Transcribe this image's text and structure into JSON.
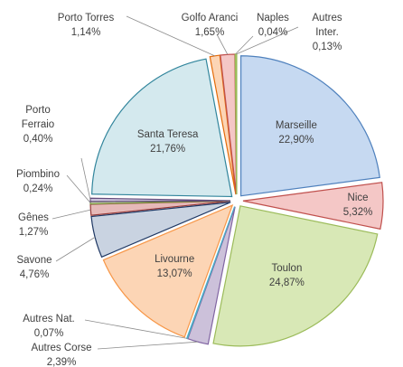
{
  "chart_data": {
    "type": "pie",
    "categories": [
      "Marseille",
      "Nice",
      "Toulon",
      "Autres Corse",
      "Autres Nat.",
      "Livourne",
      "Savone",
      "Gênes",
      "Piombino",
      "Porto Ferraio",
      "Santa Teresa",
      "Porto Torres",
      "Golfo Aranci",
      "Naples",
      "Autres Inter."
    ],
    "values": [
      22.9,
      5.32,
      24.87,
      2.39,
      0.07,
      13.07,
      4.76,
      1.27,
      0.24,
      0.4,
      21.76,
      1.14,
      1.65,
      0.04,
      0.13
    ],
    "value_labels": [
      "22,90%",
      "5,32%",
      "24,87%",
      "2,39%",
      "0,07%",
      "13,07%",
      "4,76%",
      "1,27%",
      "0,24%",
      "0,40%",
      "21,76%",
      "1,14%",
      "1,65%",
      "0,04%",
      "0,13%"
    ],
    "colors": [
      "#c6d9f1",
      "#f4c7c6",
      "#d8e8b6",
      "#ccc1da",
      "#b7dee8",
      "#fcd5b5",
      "#c9d3e1",
      "#e6b9b8",
      "#d7e4bd",
      "#ccc1da",
      "#d4e9ee",
      "#fcd5b5",
      "#f4c7c6",
      "#d8e8b6",
      "#f0f4c0"
    ],
    "strokes": [
      "#4f81bd",
      "#c0504d",
      "#9bbb59",
      "#8064a2",
      "#4bacc6",
      "#f79646",
      "#1f3864",
      "#953735",
      "#77933c",
      "#604a7b",
      "#31859c",
      "#e46c0a",
      "#c0504d",
      "#9bbb59",
      "#9bbb59"
    ]
  }
}
